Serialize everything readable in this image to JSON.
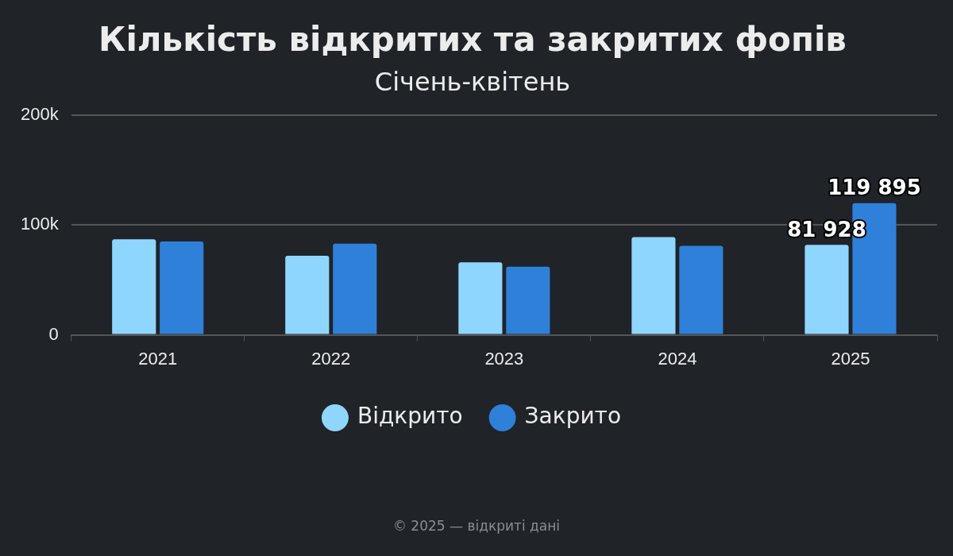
{
  "chart_data": {
    "type": "bar",
    "title": "Кількість відкритих та закритих фопів",
    "subtitle": "Січень-квітень",
    "categories": [
      "2021",
      "2022",
      "2023",
      "2024",
      "2025"
    ],
    "series": [
      {
        "name": "Відкрито",
        "color": "#8fd6ff",
        "values": [
          87000,
          72000,
          66000,
          89000,
          81928
        ],
        "value_labels": [
          null,
          null,
          null,
          null,
          "81 928"
        ]
      },
      {
        "name": "Закрито",
        "color": "#2f80d9",
        "values": [
          85000,
          83000,
          62000,
          81000,
          119895
        ],
        "value_labels": [
          null,
          null,
          null,
          null,
          "119 895"
        ]
      }
    ],
    "ylim": [
      0,
      200000
    ],
    "yticks": [
      0,
      {
        "value": 100000,
        "label": "100k"
      },
      {
        "value": 200000,
        "label": "200k"
      }
    ],
    "grid": "y",
    "legend": "bottom",
    "annotations": [
      "© 2025 — відкриті дані"
    ]
  }
}
